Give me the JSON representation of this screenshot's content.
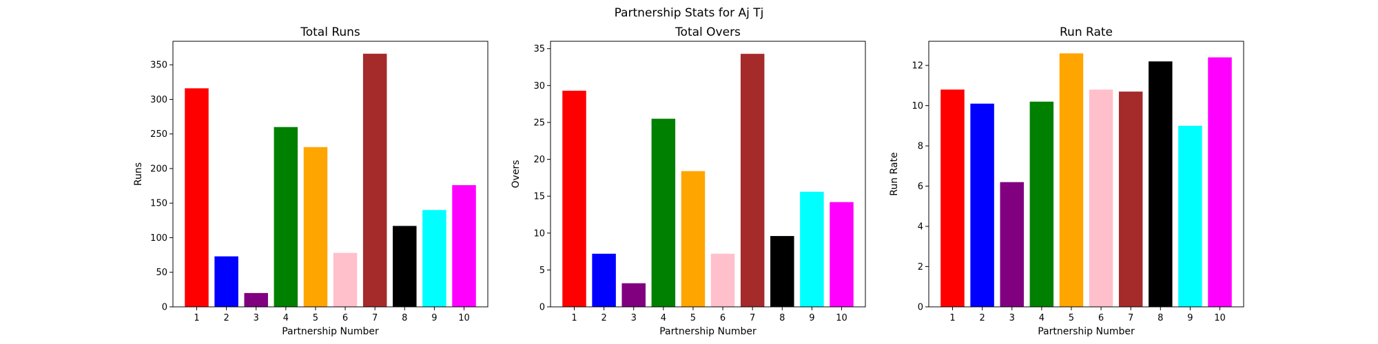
{
  "title": "Partnership Stats for Aj Tj",
  "chart_data": [
    {
      "type": "bar",
      "title": "Total Runs",
      "xlabel": "Partnership Number",
      "ylabel": "Runs",
      "categories": [
        "1",
        "2",
        "3",
        "4",
        "5",
        "6",
        "7",
        "8",
        "9",
        "10"
      ],
      "values": [
        316,
        73,
        20,
        260,
        231,
        78,
        366,
        117,
        140,
        176
      ],
      "ylim": [
        0,
        384
      ],
      "yticks": [
        0,
        50,
        100,
        150,
        200,
        250,
        300,
        350
      ],
      "colors": [
        "#ff0000",
        "#0000ff",
        "#800080",
        "#008000",
        "#ffa500",
        "#ffc0cb",
        "#a52a2a",
        "#000000",
        "#00ffff",
        "#ff00ff"
      ],
      "grid": false
    },
    {
      "type": "bar",
      "title": "Total Overs",
      "xlabel": "Partnership Number",
      "ylabel": "Overs",
      "categories": [
        "1",
        "2",
        "3",
        "4",
        "5",
        "6",
        "7",
        "8",
        "9",
        "10"
      ],
      "values": [
        29.3,
        7.2,
        3.2,
        25.5,
        18.4,
        7.2,
        34.3,
        9.6,
        15.6,
        14.2
      ],
      "ylim": [
        0,
        36
      ],
      "yticks": [
        0,
        5,
        10,
        15,
        20,
        25,
        30,
        35
      ],
      "colors": [
        "#ff0000",
        "#0000ff",
        "#800080",
        "#008000",
        "#ffa500",
        "#ffc0cb",
        "#a52a2a",
        "#000000",
        "#00ffff",
        "#ff00ff"
      ],
      "grid": false
    },
    {
      "type": "bar",
      "title": "Run Rate",
      "xlabel": "Partnership Number",
      "ylabel": "Run Rate",
      "categories": [
        "1",
        "2",
        "3",
        "4",
        "5",
        "6",
        "7",
        "8",
        "9",
        "10"
      ],
      "values": [
        10.8,
        10.1,
        6.2,
        10.2,
        12.6,
        10.8,
        10.7,
        12.2,
        9.0,
        12.4
      ],
      "ylim": [
        0,
        13.2
      ],
      "yticks": [
        0,
        2,
        4,
        6,
        8,
        10,
        12
      ],
      "colors": [
        "#ff0000",
        "#0000ff",
        "#800080",
        "#008000",
        "#ffa500",
        "#ffc0cb",
        "#a52a2a",
        "#000000",
        "#00ffff",
        "#ff00ff"
      ],
      "grid": false
    }
  ]
}
